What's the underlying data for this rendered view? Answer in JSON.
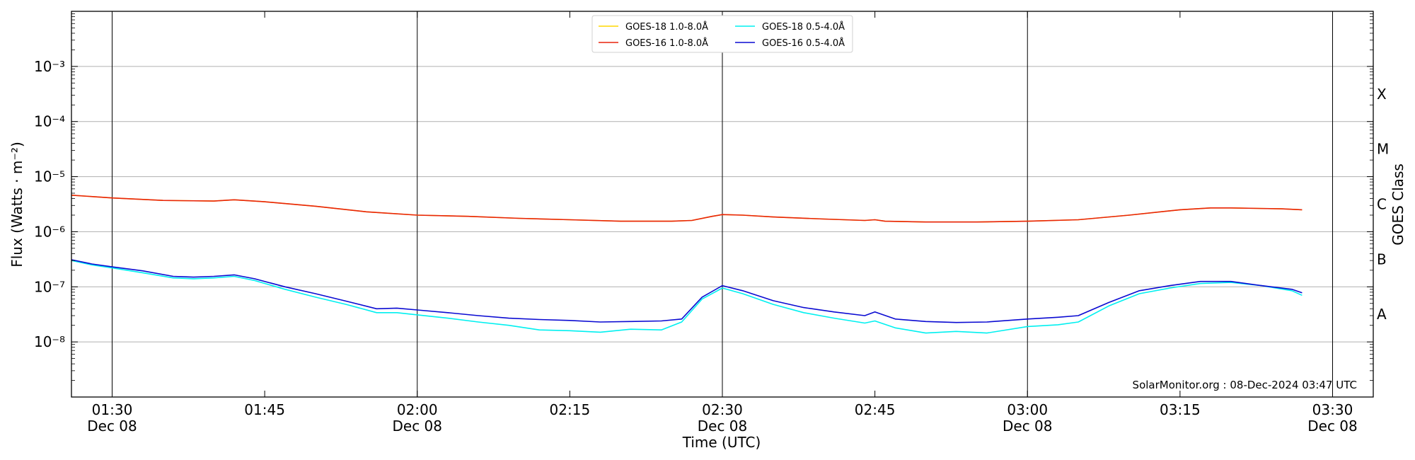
{
  "chart_data": {
    "type": "line",
    "xlabel": "Time (UTC)",
    "ylabel": "Flux (Watts · m⁻²)",
    "y2label": "GOES Class",
    "yscale": "log",
    "ylim": [
      1e-09,
      0.01
    ],
    "xlim": [
      "2024-12-08 01:26",
      "2024-12-08 03:34"
    ],
    "grid": "horizontal at decades",
    "legend_position": "top-center",
    "credit": "SolarMonitor.org : 08-Dec-2024 03:47 UTC",
    "x_ticks": [
      {
        "time": "01:30",
        "label": "01:30",
        "sublabel": "Dec 08",
        "major": true
      },
      {
        "time": "01:45",
        "label": "01:45",
        "sublabel": "",
        "major": false
      },
      {
        "time": "02:00",
        "label": "02:00",
        "sublabel": "Dec 08",
        "major": true
      },
      {
        "time": "02:15",
        "label": "02:15",
        "sublabel": "",
        "major": false
      },
      {
        "time": "02:30",
        "label": "02:30",
        "sublabel": "Dec 08",
        "major": true
      },
      {
        "time": "02:45",
        "label": "02:45",
        "sublabel": "",
        "major": false
      },
      {
        "time": "03:00",
        "label": "03:00",
        "sublabel": "Dec 08",
        "major": true
      },
      {
        "time": "03:15",
        "label": "03:15",
        "sublabel": "",
        "major": false
      },
      {
        "time": "03:30",
        "label": "03:30",
        "sublabel": "Dec 08",
        "major": true
      }
    ],
    "y_ticks": [
      {
        "value": 0.001,
        "label": "10⁻³"
      },
      {
        "value": 0.0001,
        "label": "10⁻⁴"
      },
      {
        "value": 1e-05,
        "label": "10⁻⁵"
      },
      {
        "value": 1e-06,
        "label": "10⁻⁶"
      },
      {
        "value": 1e-07,
        "label": "10⁻⁷"
      },
      {
        "value": 1e-08,
        "label": "10⁻⁸"
      }
    ],
    "goes_classes": [
      {
        "label": "X",
        "value": 0.000316
      },
      {
        "label": "M",
        "value": 3.16e-05
      },
      {
        "label": "C",
        "value": 3.16e-06
      },
      {
        "label": "B",
        "value": 3.16e-07
      },
      {
        "label": "A",
        "value": 3.16e-08
      }
    ],
    "series": [
      {
        "name": "GOES-18 1.0-8.0Å",
        "color": "#FFD700",
        "x": [
          "01:26",
          "01:30",
          "01:35",
          "01:40",
          "01:42",
          "01:45",
          "01:50",
          "01:55",
          "02:00",
          "02:05",
          "02:10",
          "02:15",
          "02:20",
          "02:25",
          "02:27",
          "02:29",
          "02:30",
          "02:32",
          "02:35",
          "02:40",
          "02:44",
          "02:45",
          "02:46",
          "02:50",
          "02:55",
          "03:00",
          "03:05",
          "03:10",
          "03:15",
          "03:18",
          "03:20",
          "03:25",
          "03:27"
        ],
        "y": [
          4.6e-06,
          4.1e-06,
          3.7e-06,
          3.6e-06,
          3.8e-06,
          3.5e-06,
          2.9e-06,
          2.3e-06,
          2e-06,
          1.9e-06,
          1.75e-06,
          1.65e-06,
          1.55e-06,
          1.55e-06,
          1.6e-06,
          1.9e-06,
          2.05e-06,
          2e-06,
          1.85e-06,
          1.7e-06,
          1.6e-06,
          1.65e-06,
          1.55e-06,
          1.5e-06,
          1.5e-06,
          1.55e-06,
          1.65e-06,
          2e-06,
          2.5e-06,
          2.7e-06,
          2.7e-06,
          2.6e-06,
          2.5e-06
        ]
      },
      {
        "name": "GOES-16 1.0-8.0Å",
        "color": "#E8240C",
        "x": [
          "01:26",
          "01:30",
          "01:35",
          "01:40",
          "01:42",
          "01:45",
          "01:50",
          "01:55",
          "02:00",
          "02:05",
          "02:10",
          "02:15",
          "02:20",
          "02:25",
          "02:27",
          "02:29",
          "02:30",
          "02:32",
          "02:35",
          "02:40",
          "02:44",
          "02:45",
          "02:46",
          "02:50",
          "02:55",
          "03:00",
          "03:05",
          "03:10",
          "03:15",
          "03:18",
          "03:20",
          "03:25",
          "03:27"
        ],
        "y": [
          4.6e-06,
          4.1e-06,
          3.7e-06,
          3.6e-06,
          3.8e-06,
          3.5e-06,
          2.9e-06,
          2.3e-06,
          2e-06,
          1.9e-06,
          1.75e-06,
          1.65e-06,
          1.55e-06,
          1.55e-06,
          1.6e-06,
          1.9e-06,
          2.05e-06,
          2e-06,
          1.85e-06,
          1.7e-06,
          1.6e-06,
          1.65e-06,
          1.55e-06,
          1.5e-06,
          1.5e-06,
          1.55e-06,
          1.65e-06,
          2e-06,
          2.5e-06,
          2.7e-06,
          2.7e-06,
          2.6e-06,
          2.5e-06
        ]
      },
      {
        "name": "GOES-18 0.5-4.0Å",
        "color": "#00F0F0",
        "x": [
          "01:26",
          "01:28",
          "01:30",
          "01:33",
          "01:36",
          "01:38",
          "01:40",
          "01:42",
          "01:44",
          "01:47",
          "01:50",
          "01:53",
          "01:56",
          "01:58",
          "02:00",
          "02:03",
          "02:06",
          "02:09",
          "02:12",
          "02:15",
          "02:18",
          "02:21",
          "02:24",
          "02:26",
          "02:28",
          "02:30",
          "02:32",
          "02:35",
          "02:38",
          "02:41",
          "02:44",
          "02:45",
          "02:47",
          "02:50",
          "02:53",
          "02:56",
          "03:00",
          "03:03",
          "03:05",
          "03:08",
          "03:11",
          "03:14",
          "03:17",
          "03:20",
          "03:23",
          "03:26",
          "03:27"
        ],
        "y": [
          3e-07,
          2.5e-07,
          2.2e-07,
          1.8e-07,
          1.45e-07,
          1.4e-07,
          1.45e-07,
          1.55e-07,
          1.3e-07,
          9e-08,
          6.5e-08,
          4.8e-08,
          3.4e-08,
          3.4e-08,
          3.1e-08,
          2.7e-08,
          2.3e-08,
          2e-08,
          1.65e-08,
          1.6e-08,
          1.5e-08,
          1.7e-08,
          1.65e-08,
          2.3e-08,
          6e-08,
          9.5e-08,
          7.5e-08,
          4.8e-08,
          3.4e-08,
          2.7e-08,
          2.2e-08,
          2.4e-08,
          1.8e-08,
          1.45e-08,
          1.55e-08,
          1.45e-08,
          1.9e-08,
          2.05e-08,
          2.3e-08,
          4.5e-08,
          7.5e-08,
          9.5e-08,
          1.15e-07,
          1.2e-07,
          1.05e-07,
          8.5e-08,
          7e-08
        ]
      },
      {
        "name": "GOES-16 0.5-4.0Å",
        "color": "#0A0AD2",
        "x": [
          "01:26",
          "01:28",
          "01:30",
          "01:33",
          "01:36",
          "01:38",
          "01:40",
          "01:42",
          "01:44",
          "01:47",
          "01:50",
          "01:53",
          "01:56",
          "01:58",
          "02:00",
          "02:03",
          "02:06",
          "02:09",
          "02:12",
          "02:15",
          "02:18",
          "02:21",
          "02:24",
          "02:26",
          "02:28",
          "02:30",
          "02:32",
          "02:35",
          "02:38",
          "02:41",
          "02:44",
          "02:45",
          "02:47",
          "02:50",
          "02:53",
          "02:56",
          "03:00",
          "03:03",
          "03:05",
          "03:08",
          "03:11",
          "03:14",
          "03:17",
          "03:20",
          "03:23",
          "03:26",
          "03:27"
        ],
        "y": [
          3.1e-07,
          2.6e-07,
          2.3e-07,
          1.95e-07,
          1.55e-07,
          1.5e-07,
          1.55e-07,
          1.65e-07,
          1.4e-07,
          1e-07,
          7.5e-08,
          5.5e-08,
          4e-08,
          4.1e-08,
          3.8e-08,
          3.4e-08,
          3e-08,
          2.7e-08,
          2.55e-08,
          2.45e-08,
          2.3e-08,
          2.35e-08,
          2.4e-08,
          2.6e-08,
          6.5e-08,
          1.05e-07,
          8.5e-08,
          5.6e-08,
          4.2e-08,
          3.5e-08,
          3e-08,
          3.5e-08,
          2.6e-08,
          2.35e-08,
          2.25e-08,
          2.3e-08,
          2.6e-08,
          2.8e-08,
          3e-08,
          5.2e-08,
          8.5e-08,
          1.05e-07,
          1.25e-07,
          1.25e-07,
          1.05e-07,
          9e-08,
          7.8e-08
        ]
      }
    ]
  }
}
